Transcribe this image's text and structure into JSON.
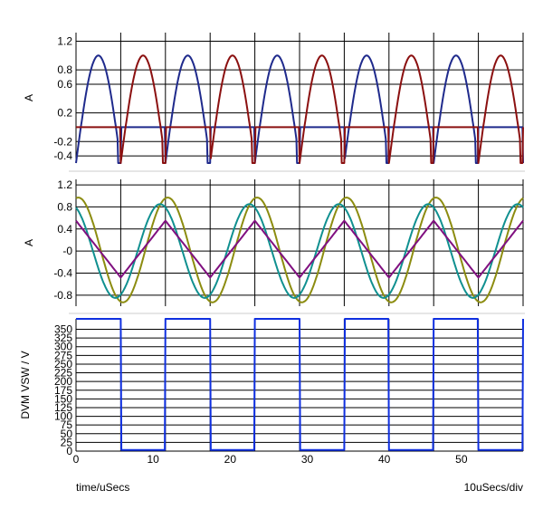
{
  "footer": {
    "left": "time/uSecs",
    "right": "10uSecs/div"
  },
  "colors": {
    "grid": "#000000",
    "separator": "#cccccc",
    "navy": "#1f2a8c",
    "maroon": "#8b1010",
    "olive": "#8c8c10",
    "teal": "#109090",
    "purple": "#801080",
    "blue": "#1030e0"
  },
  "chart_data": [
    {
      "type": "line",
      "ylabel": "A",
      "ylim": [
        -0.5,
        1.32
      ],
      "yticks": [
        -0.4,
        -0.2,
        0.2,
        0.6,
        0.8,
        1.2
      ],
      "ytick_labels": [
        "-0.4",
        "-0.2",
        "0.2",
        "0.6",
        "0.8",
        "1.2"
      ],
      "xlim": [
        0,
        58
      ],
      "xgrid": [
        0,
        5.8,
        11.6,
        17.4,
        23.2,
        29,
        34.8,
        40.6,
        46.4,
        52.2,
        58
      ],
      "grid": true,
      "period": 11.6,
      "series": [
        {
          "color": "navy",
          "waveform": "gated-sine",
          "amplitude": 1.0,
          "offset": -0.5,
          "phase": 0,
          "line_width": 2
        },
        {
          "color": "maroon",
          "waveform": "gated-sine",
          "amplitude": 1.0,
          "offset": -0.5,
          "phase": 5.8,
          "line_width": 2
        }
      ]
    },
    {
      "type": "line",
      "ylabel": "A",
      "ylim": [
        -1.0,
        1.3
      ],
      "yticks": [
        -0.8,
        -0.4,
        0,
        0.4,
        0.8,
        1.2
      ],
      "ytick_labels": [
        "-0.8",
        "-0.4",
        "-0",
        "0.4",
        "0.8",
        "1.2"
      ],
      "xlim": [
        0,
        58
      ],
      "xgrid": [
        0,
        5.8,
        11.6,
        17.4,
        23.2,
        29,
        34.8,
        40.6,
        46.4,
        52.2,
        58
      ],
      "grid": true,
      "period": 11.6,
      "series": [
        {
          "color": "olive",
          "waveform": "sine",
          "amplitude": 0.95,
          "center": 0.02,
          "phase": -2.6,
          "line_width": 2
        },
        {
          "color": "teal",
          "waveform": "sine",
          "amplitude": 0.85,
          "center": 0,
          "phase": -3.6,
          "line_width": 2
        },
        {
          "color": "purple",
          "waveform": "triangle",
          "low": -0.48,
          "high": 0.55,
          "phase": 5.8,
          "line_width": 2
        }
      ]
    },
    {
      "type": "line",
      "ylabel": "DVM VSW / V",
      "ylim": [
        0,
        380
      ],
      "yticks": [
        0,
        25,
        50,
        75,
        100,
        125,
        150,
        175,
        200,
        225,
        250,
        275,
        300,
        325,
        350
      ],
      "ytick_labels": [
        "0",
        "25",
        "50",
        "75",
        "100",
        "125",
        "150",
        "175",
        "200",
        "225",
        "250",
        "275",
        "300",
        "325",
        "350"
      ],
      "xlim": [
        0,
        58
      ],
      "xgrid": [
        0,
        5.8,
        11.6,
        17.4,
        23.2,
        29,
        34.8,
        40.6,
        46.4,
        52.2,
        58
      ],
      "xticks": [
        0,
        10,
        20,
        30,
        40,
        50
      ],
      "xtick_labels": [
        "0",
        "10",
        "20",
        "30",
        "40",
        "50"
      ],
      "grid": true,
      "period": 11.6,
      "series": [
        {
          "color": "blue",
          "waveform": "square",
          "low": 3,
          "high": 383,
          "duty": 0.5,
          "phase": 0,
          "line_width": 2
        }
      ]
    }
  ]
}
